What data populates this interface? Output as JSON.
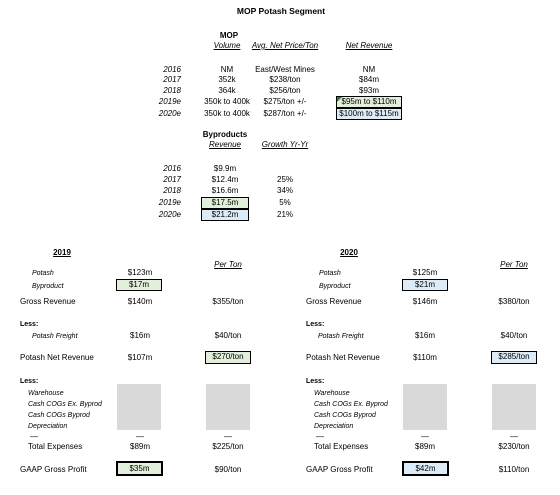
{
  "title": "MOP Potash Segment",
  "mop": {
    "heading": "MOP",
    "col_volume": "Volume",
    "col_price": "Avg. Net Price/Ton",
    "col_revenue": "Net Revenue",
    "rows": [
      {
        "year": "2016",
        "volume": "NM",
        "price": "East/West Mines",
        "revenue": "NM"
      },
      {
        "year": "2017",
        "volume": "352k",
        "price": "$238/ton",
        "revenue": "$84m"
      },
      {
        "year": "2018",
        "volume": "364k",
        "price": "$256/ton",
        "revenue": "$93m"
      },
      {
        "year": "2019e",
        "volume": "350k to 400k",
        "price": "$275/ton +/-",
        "revenue": "$95m  to $110m"
      },
      {
        "year": "2020e",
        "volume": "350k to 400k",
        "price": "$287/ton +/-",
        "revenue": "$100m to $115m"
      }
    ]
  },
  "byproducts": {
    "heading": "Byproducts",
    "col_revenue": "Revenue",
    "col_growth": "Growth Yr-Yr",
    "rows": [
      {
        "year": "2016",
        "revenue": "$9.9m",
        "growth": ""
      },
      {
        "year": "2017",
        "revenue": "$12.4m",
        "growth": "25%"
      },
      {
        "year": "2018",
        "revenue": "$16.6m",
        "growth": "34%"
      },
      {
        "year": "2019e",
        "revenue": "$17.5m",
        "growth": "5%"
      },
      {
        "year": "2020e",
        "revenue": "$21.2m",
        "growth": "21%"
      }
    ]
  },
  "y2019": {
    "year": "2019",
    "per_ton_header": "Per Ton",
    "potash_label": "Potash",
    "potash": "$123m",
    "byproduct_label": "Byproduct",
    "byproduct": "$17m",
    "gross_label": "Gross Revenue",
    "gross": "$140m",
    "gross_pt": "$355/ton",
    "less1": "Less:",
    "freight_label": "Potash Freight",
    "freight": "$16m",
    "freight_pt": "$40/ton",
    "net_label": "Potash Net Revenue",
    "net": "$107m",
    "net_pt": "$270/ton",
    "less2": "Less:",
    "exp_items": [
      "Warehouse",
      "Cash COGs Ex. Byprod",
      "Cash COGs Byprod",
      "Depreciation"
    ],
    "dash": "—",
    "total_label": "Total Expenses",
    "total": "$89m",
    "total_pt": "$225/ton",
    "gaap_label": "GAAP Gross Profit",
    "gaap": "$35m",
    "gaap_pt": "$90/ton"
  },
  "y2020": {
    "year": "2020",
    "per_ton_header": "Per Ton",
    "potash_label": "Potash",
    "potash": "$125m",
    "byproduct_label": "Byproduct",
    "byproduct": "$21m",
    "gross_label": "Gross Revenue",
    "gross": "$146m",
    "gross_pt": "$380/ton",
    "less1": "Less:",
    "freight_label": "Potash Freight",
    "freight": "$16m",
    "freight_pt": "$40/ton",
    "net_label": "Potash Net Revenue",
    "net": "$110m",
    "net_pt": "$285/ton",
    "less2": "Less:",
    "exp_items": [
      "Warehouse",
      "Cash COGs Ex. Byprod",
      "Cash COGs Byprod",
      "Depreciation"
    ],
    "dash": "—",
    "total_label": "Total Expenses",
    "total": "$89m",
    "total_pt": "$230/ton",
    "gaap_label": "GAAP Gross Profit",
    "gaap": "$42m",
    "gaap_pt": "$110/ton"
  },
  "colors": {
    "green_fill": "#e2efda",
    "blue_fill": "#ddebf7",
    "placeholder_gray": "#d9d9d9"
  }
}
